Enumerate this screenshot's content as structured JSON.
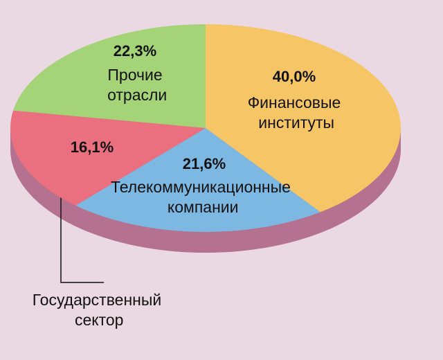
{
  "chart_data": {
    "type": "pie",
    "categories": [
      "Финансовые институты",
      "Телекоммуникационные компании",
      "Государственный сектор",
      "Прочие отрасли"
    ],
    "values": [
      40.0,
      21.6,
      16.1,
      22.3
    ],
    "value_labels": [
      "40,0%",
      "21,6%",
      "16,1%",
      "22,3%"
    ],
    "colors": [
      "#f6c566",
      "#7db8e2",
      "#ea6f7f",
      "#a4d378"
    ]
  }
}
